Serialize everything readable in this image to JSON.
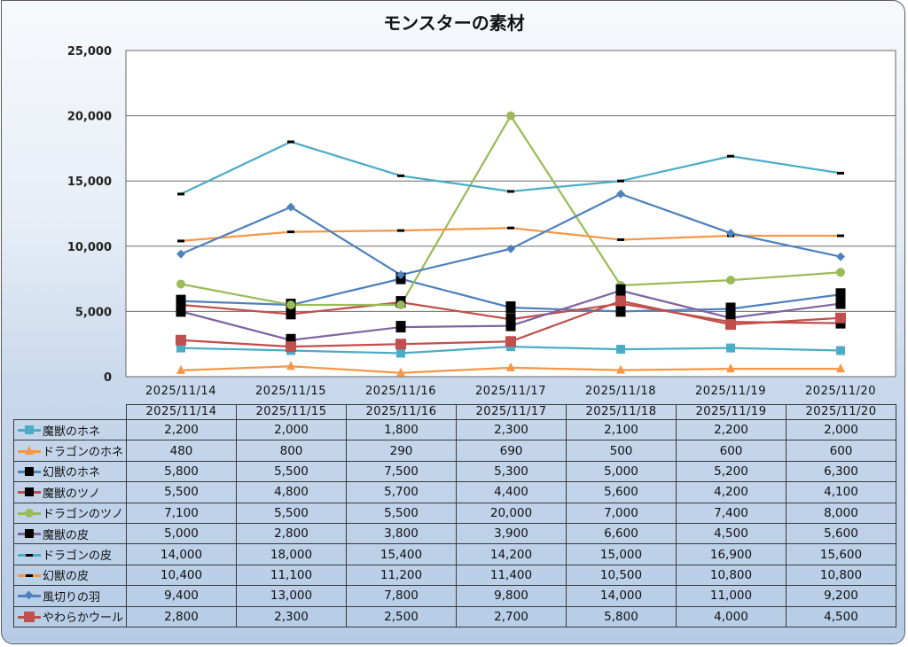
{
  "chart_data": {
    "type": "line",
    "title": "モンスターの素材",
    "xlabel": "",
    "ylabel": "",
    "ylim": [
      0,
      25000
    ],
    "yticks": [
      0,
      5000,
      10000,
      15000,
      20000,
      25000
    ],
    "ytick_labels": [
      "0",
      "5,000",
      "10,000",
      "15,000",
      "20,000",
      "25,000"
    ],
    "grid": true,
    "legend": "data-table-below",
    "categories": [
      "2025/11/14",
      "2025/11/15",
      "2025/11/16",
      "2025/11/17",
      "2025/11/18",
      "2025/11/19",
      "2025/11/20"
    ],
    "series": [
      {
        "name": "魔獣のホネ",
        "color": "#4bacc6",
        "marker": "square",
        "values": [
          2200,
          2000,
          1800,
          2300,
          2100,
          2200,
          2000
        ],
        "labels": [
          "2,200",
          "2,000",
          "1,800",
          "2,300",
          "2,100",
          "2,200",
          "2,000"
        ]
      },
      {
        "name": "ドラゴンのホネ",
        "color": "#f79646",
        "marker": "triangle",
        "values": [
          480,
          800,
          290,
          690,
          500,
          600,
          600
        ],
        "labels": [
          "480",
          "800",
          "290",
          "690",
          "500",
          "600",
          "600"
        ]
      },
      {
        "name": "幻獣のホネ",
        "color": "#4f81bd",
        "marker": "black-square",
        "values": [
          5800,
          5500,
          7500,
          5300,
          5000,
          5200,
          6300
        ],
        "labels": [
          "5,800",
          "5,500",
          "7,500",
          "5,300",
          "5,000",
          "5,200",
          "6,300"
        ]
      },
      {
        "name": "魔獣のツノ",
        "color": "#c0504d",
        "marker": "black-square",
        "values": [
          5500,
          4800,
          5700,
          4400,
          5600,
          4200,
          4100
        ],
        "labels": [
          "5,500",
          "4,800",
          "5,700",
          "4,400",
          "5,600",
          "4,200",
          "4,100"
        ]
      },
      {
        "name": "ドラゴンのツノ",
        "color": "#9bbb59",
        "marker": "circle",
        "values": [
          7100,
          5500,
          5500,
          20000,
          7000,
          7400,
          8000
        ],
        "labels": [
          "7,100",
          "5,500",
          "5,500",
          "20,000",
          "7,000",
          "7,400",
          "8,000"
        ]
      },
      {
        "name": "魔獣の皮",
        "color": "#8064a2",
        "marker": "black-square",
        "values": [
          5000,
          2800,
          3800,
          3900,
          6600,
          4500,
          5600
        ],
        "labels": [
          "5,000",
          "2,800",
          "3,800",
          "3,900",
          "6,600",
          "4,500",
          "5,600"
        ]
      },
      {
        "name": "ドラゴンの皮",
        "color": "#4bacc6",
        "marker": "dash",
        "values": [
          14000,
          18000,
          15400,
          14200,
          15000,
          16900,
          15600
        ],
        "labels": [
          "14,000",
          "18,000",
          "15,400",
          "14,200",
          "15,000",
          "16,900",
          "15,600"
        ]
      },
      {
        "name": "幻獣の皮",
        "color": "#f79646",
        "marker": "dash",
        "values": [
          10400,
          11100,
          11200,
          11400,
          10500,
          10800,
          10800
        ],
        "labels": [
          "10,400",
          "11,100",
          "11,200",
          "11,400",
          "10,500",
          "10,800",
          "10,800"
        ]
      },
      {
        "name": "風切りの羽",
        "color": "#4f81bd",
        "marker": "diamond",
        "values": [
          9400,
          13000,
          7800,
          9800,
          14000,
          11000,
          9200
        ],
        "labels": [
          "9,400",
          "13,000",
          "7,800",
          "9,800",
          "14,000",
          "11,000",
          "9,200"
        ]
      },
      {
        "name": "やわらかウール",
        "color": "#c0504d",
        "marker": "big-square",
        "values": [
          2800,
          2300,
          2500,
          2700,
          5800,
          4000,
          4500
        ],
        "labels": [
          "2,800",
          "2,300",
          "2,500",
          "2,700",
          "5,800",
          "4,000",
          "4,500"
        ]
      }
    ]
  }
}
